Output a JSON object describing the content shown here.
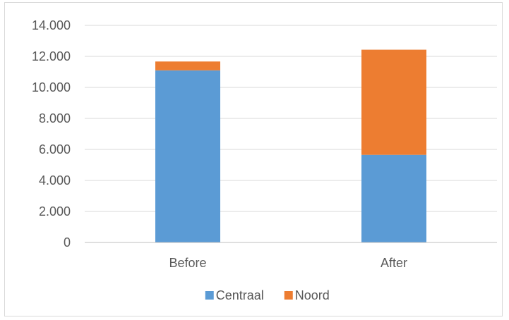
{
  "chart_data": {
    "type": "bar",
    "stacked": true,
    "title": "",
    "xlabel": "",
    "ylabel": "",
    "categories": [
      "Before",
      "After"
    ],
    "series": [
      {
        "name": "Centraal",
        "color": "#5b9bd5",
        "values": [
          11100,
          5650
        ]
      },
      {
        "name": "Noord",
        "color": "#ed7d31",
        "values": [
          570,
          6780
        ]
      }
    ],
    "ylim": [
      0,
      14000
    ],
    "yticks": [
      0,
      2000,
      4000,
      6000,
      8000,
      10000,
      12000,
      14000
    ],
    "ytick_labels": [
      "0",
      "2.000",
      "4.000",
      "6.000",
      "8.000",
      "10.000",
      "12.000",
      "14.000"
    ],
    "grid": true,
    "legend_position": "bottom"
  }
}
